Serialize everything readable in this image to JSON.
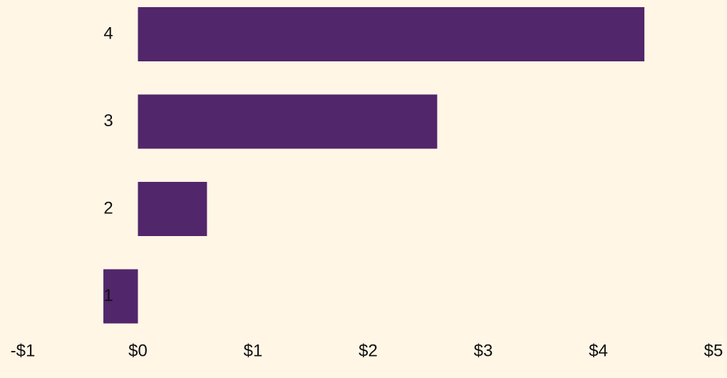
{
  "chart_data": {
    "type": "bar",
    "orientation": "horizontal",
    "categories": [
      "1",
      "2",
      "3",
      "4"
    ],
    "values": [
      -0.3,
      0.6,
      2.6,
      4.4
    ],
    "color": "#52266b",
    "xlim": [
      -1,
      5
    ],
    "xticks": [
      {
        "value": -1,
        "label": "-$1"
      },
      {
        "value": 0,
        "label": "$0"
      },
      {
        "value": 1,
        "label": "$1"
      },
      {
        "value": 2,
        "label": "$2"
      },
      {
        "value": 3,
        "label": "$3"
      },
      {
        "value": 4,
        "label": "$4"
      },
      {
        "value": 5,
        "label": "$5"
      }
    ],
    "grid": false
  }
}
